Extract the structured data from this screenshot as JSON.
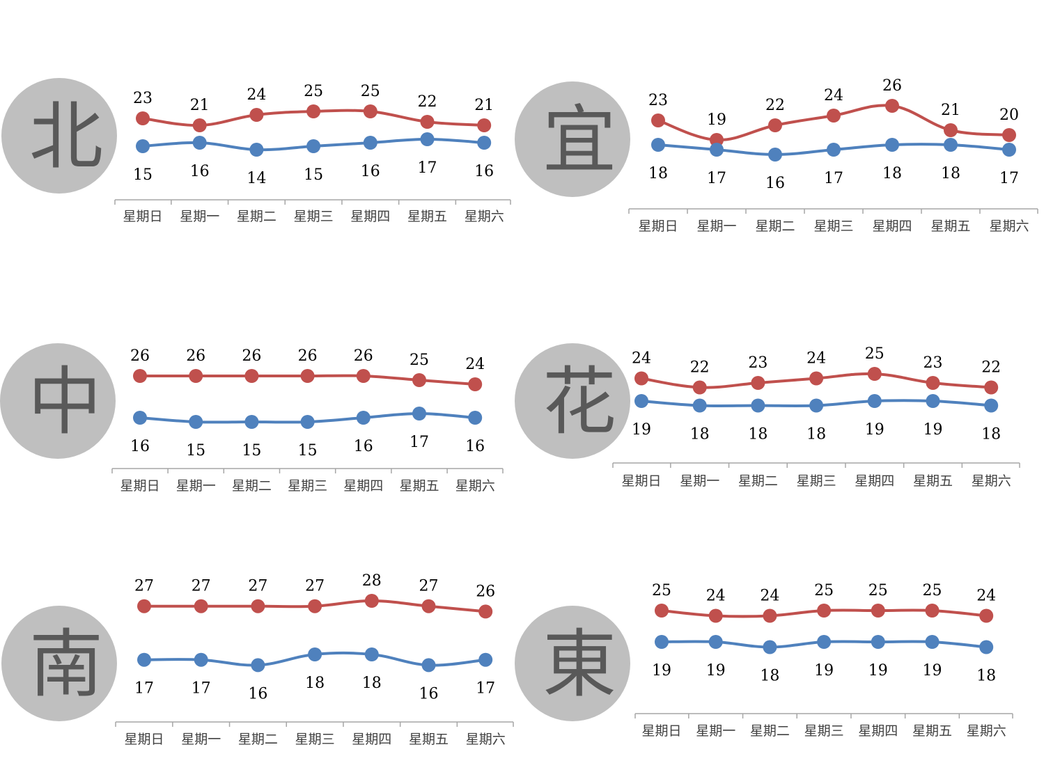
{
  "colors": {
    "high": "#c0504d",
    "low": "#4f81bd",
    "badge": "#bfbfbf",
    "badge_text": "#595959",
    "axis": "#a6a6a6",
    "text": "#000000"
  },
  "chart_data": [
    {
      "type": "line",
      "region": "北",
      "categories": [
        "星期日",
        "星期一",
        "星期二",
        "星期三",
        "星期四",
        "星期五",
        "星期六"
      ],
      "series": [
        {
          "values": [
            23,
            21,
            24,
            25,
            25,
            22,
            21
          ]
        },
        {
          "values": [
            15,
            16,
            14,
            15,
            16,
            17,
            16
          ]
        }
      ],
      "legend": "none",
      "grid": false
    },
    {
      "type": "line",
      "region": "宜",
      "categories": [
        "星期日",
        "星期一",
        "星期二",
        "星期三",
        "星期四",
        "星期五",
        "星期六"
      ],
      "series": [
        {
          "values": [
            23,
            19,
            22,
            24,
            26,
            21,
            20
          ]
        },
        {
          "values": [
            18,
            17,
            16,
            17,
            18,
            18,
            17
          ]
        }
      ],
      "legend": "none",
      "grid": false
    },
    {
      "type": "line",
      "region": "中",
      "categories": [
        "星期日",
        "星期一",
        "星期二",
        "星期三",
        "星期四",
        "星期五",
        "星期六"
      ],
      "series": [
        {
          "values": [
            26,
            26,
            26,
            26,
            26,
            25,
            24
          ]
        },
        {
          "values": [
            16,
            15,
            15,
            15,
            16,
            17,
            16
          ]
        }
      ],
      "legend": "none",
      "grid": false
    },
    {
      "type": "line",
      "region": "花",
      "categories": [
        "星期日",
        "星期一",
        "星期二",
        "星期三",
        "星期四",
        "星期五",
        "星期六"
      ],
      "series": [
        {
          "values": [
            24,
            22,
            23,
            24,
            25,
            23,
            22
          ]
        },
        {
          "values": [
            19,
            18,
            18,
            18,
            19,
            19,
            18
          ]
        }
      ],
      "legend": "none",
      "grid": false
    },
    {
      "type": "line",
      "region": "南",
      "categories": [
        "星期日",
        "星期一",
        "星期二",
        "星期三",
        "星期四",
        "星期五",
        "星期六"
      ],
      "series": [
        {
          "values": [
            27,
            27,
            27,
            27,
            28,
            27,
            26
          ]
        },
        {
          "values": [
            17,
            17,
            16,
            18,
            18,
            16,
            17
          ]
        }
      ],
      "legend": "none",
      "grid": false
    },
    {
      "type": "line",
      "region": "東",
      "categories": [
        "星期日",
        "星期一",
        "星期二",
        "星期三",
        "星期四",
        "星期五",
        "星期六"
      ],
      "series": [
        {
          "values": [
            25,
            24,
            24,
            25,
            25,
            25,
            24
          ]
        },
        {
          "values": [
            19,
            19,
            18,
            19,
            19,
            19,
            18
          ]
        }
      ],
      "legend": "none",
      "grid": false
    }
  ]
}
